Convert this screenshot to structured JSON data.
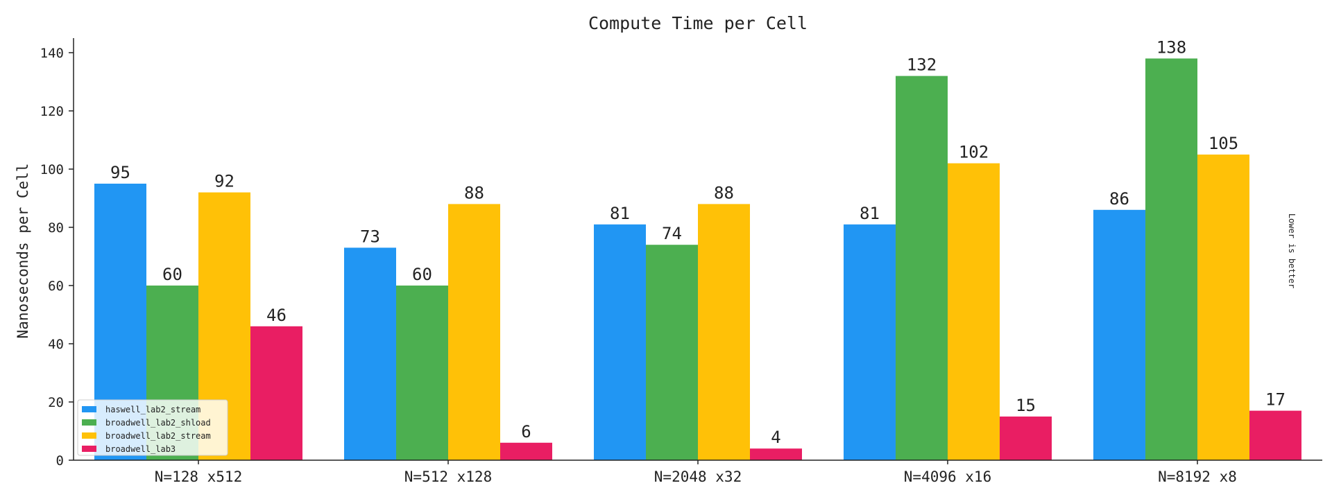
{
  "chart_data": {
    "type": "bar",
    "title": "Compute Time per Cell",
    "xlabel": "",
    "ylabel": "Nanoseconds per Cell",
    "ylim": [
      0,
      145
    ],
    "yticks": [
      0,
      20,
      40,
      60,
      80,
      100,
      120,
      140
    ],
    "categories": [
      "N=128 x512",
      "N=512 x128",
      "N=2048 x32",
      "N=4096 x16",
      "N=8192 x8"
    ],
    "series": [
      {
        "name": "haswell_lab2_stream",
        "color": "#2196f3",
        "values": [
          95,
          73,
          81,
          81,
          86
        ]
      },
      {
        "name": "broadwell_lab2_shload",
        "color": "#4caf50",
        "values": [
          60,
          60,
          74,
          132,
          138
        ]
      },
      {
        "name": "broadwell_lab2_stream",
        "color": "#ffc107",
        "values": [
          92,
          88,
          88,
          102,
          105
        ]
      },
      {
        "name": "broadwell_lab3",
        "color": "#e91e63",
        "values": [
          46,
          6,
          4,
          15,
          17
        ]
      }
    ],
    "annotation": "Lower is better",
    "legend_position": "bottom-left",
    "grid": false
  }
}
